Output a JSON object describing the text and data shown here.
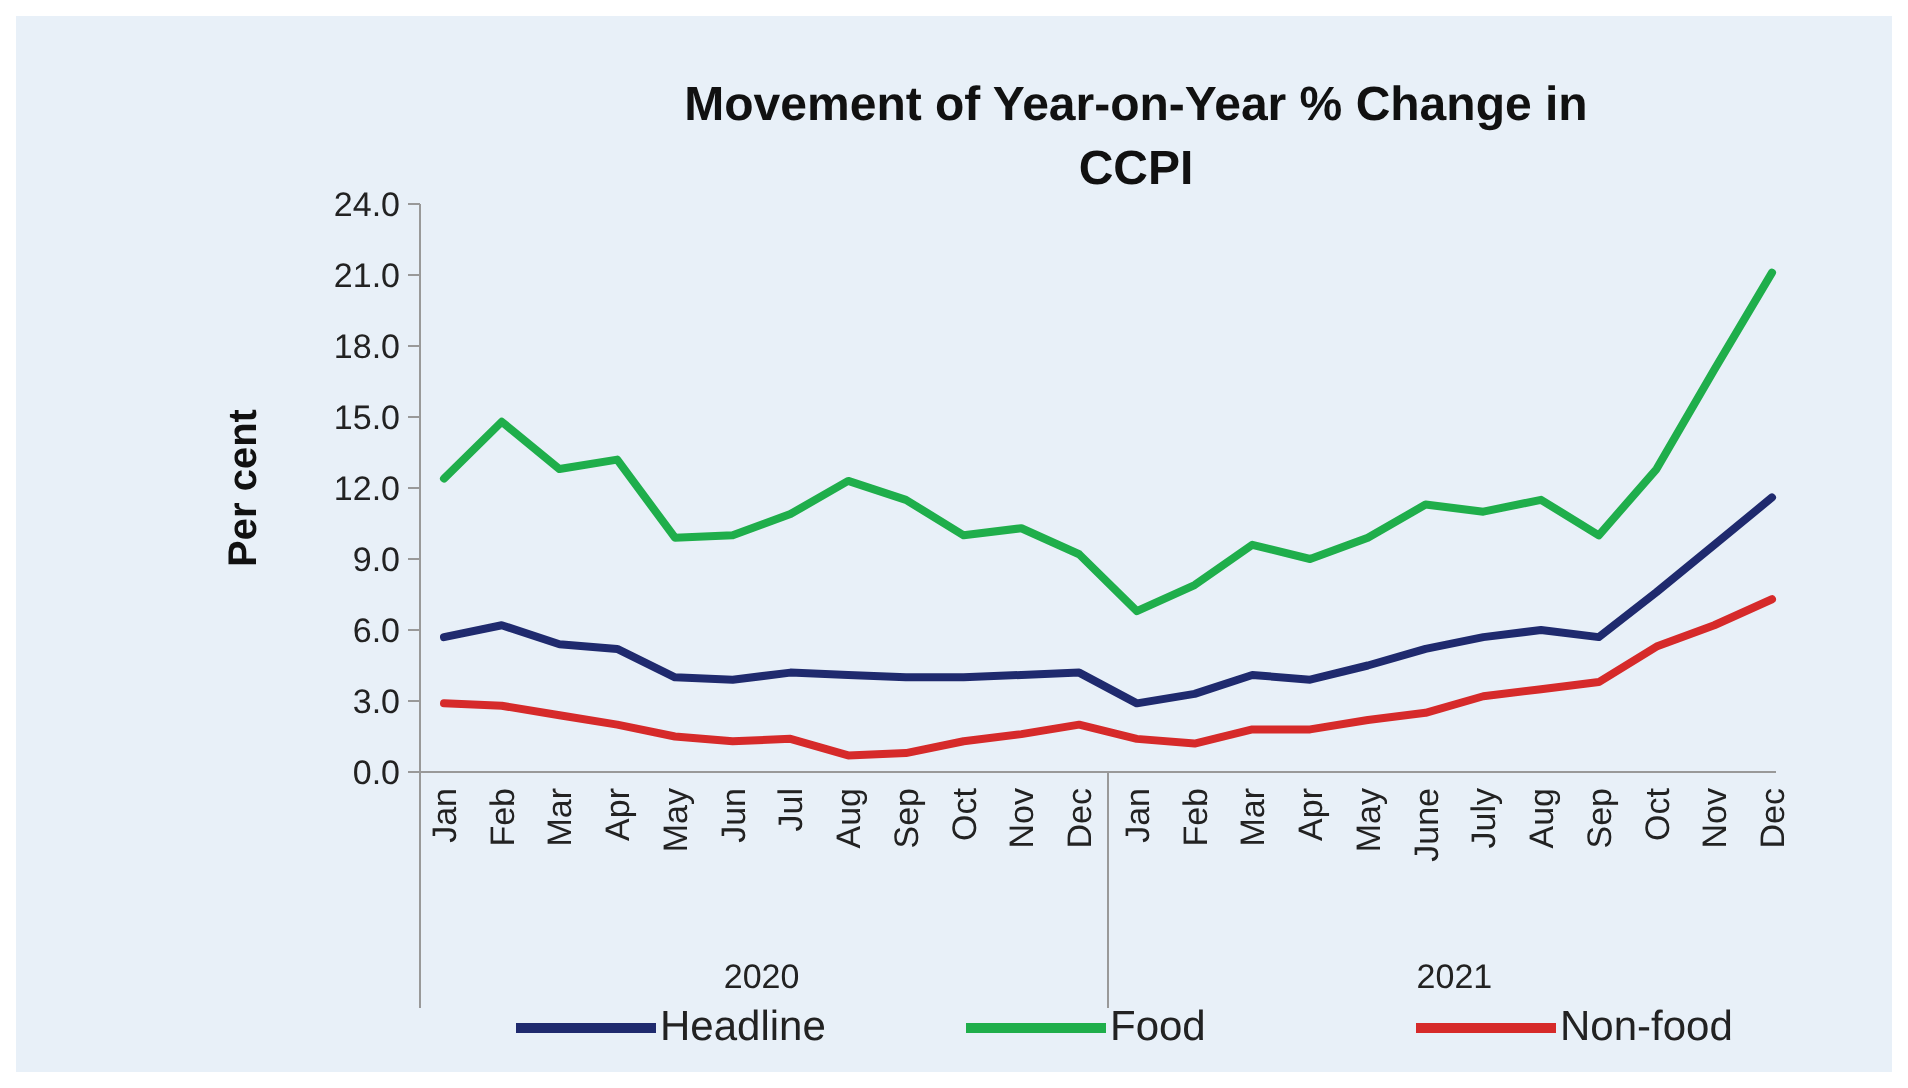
{
  "chart_data": {
    "type": "line",
    "title": "Movement of Year-on-Year % Change in CCPI",
    "ylabel": "Per cent",
    "categories": [
      "Jan",
      "Feb",
      "Mar",
      "Apr",
      "May",
      "Jun",
      "Jul",
      "Aug",
      "Sep",
      "Oct",
      "Nov",
      "Dec",
      "Jan",
      "Feb",
      "Mar",
      "Apr",
      "May",
      "June",
      "July",
      "Aug",
      "Sep",
      "Oct",
      "Nov",
      "Dec"
    ],
    "annotations": [
      "2020",
      "2021"
    ],
    "series": [
      {
        "name": "Headline",
        "color": "#1f2a6e",
        "values": [
          5.7,
          6.2,
          5.4,
          5.2,
          4.0,
          3.9,
          4.2,
          4.1,
          4.0,
          4.0,
          4.1,
          4.2,
          2.9,
          3.3,
          4.1,
          3.9,
          4.5,
          5.2,
          5.7,
          6.0,
          5.7,
          7.6,
          9.6,
          11.6
        ]
      },
      {
        "name": "Food",
        "color": "#1fae4b",
        "values": [
          12.4,
          14.8,
          12.8,
          13.2,
          9.9,
          10.0,
          10.9,
          12.3,
          11.5,
          10.0,
          10.3,
          9.2,
          6.8,
          7.9,
          9.6,
          9.0,
          9.9,
          11.3,
          11.0,
          11.5,
          10.0,
          12.8,
          17.0,
          21.1
        ]
      },
      {
        "name": "Non-food",
        "color": "#d62a2a",
        "values": [
          2.9,
          2.8,
          2.4,
          2.0,
          1.5,
          1.3,
          1.4,
          0.7,
          0.8,
          1.3,
          1.6,
          2.0,
          1.4,
          1.2,
          1.8,
          1.8,
          2.2,
          2.5,
          3.2,
          3.5,
          3.8,
          5.3,
          6.2,
          7.3
        ]
      }
    ],
    "ylim": [
      0,
      24
    ],
    "yticks": [
      {
        "value": 0,
        "label": "0.0"
      },
      {
        "value": 3,
        "label": "3.0"
      },
      {
        "value": 6,
        "label": "6.0"
      },
      {
        "value": 9,
        "label": "9.0"
      },
      {
        "value": 12,
        "label": "12.0"
      },
      {
        "value": 15,
        "label": "15.0"
      },
      {
        "value": 18,
        "label": "18.0"
      },
      {
        "value": 21,
        "label": "21.0"
      },
      {
        "value": 24,
        "label": "24.0"
      }
    ],
    "grid": false,
    "legend": "bottom",
    "marker": "none",
    "line_style": "solid"
  }
}
